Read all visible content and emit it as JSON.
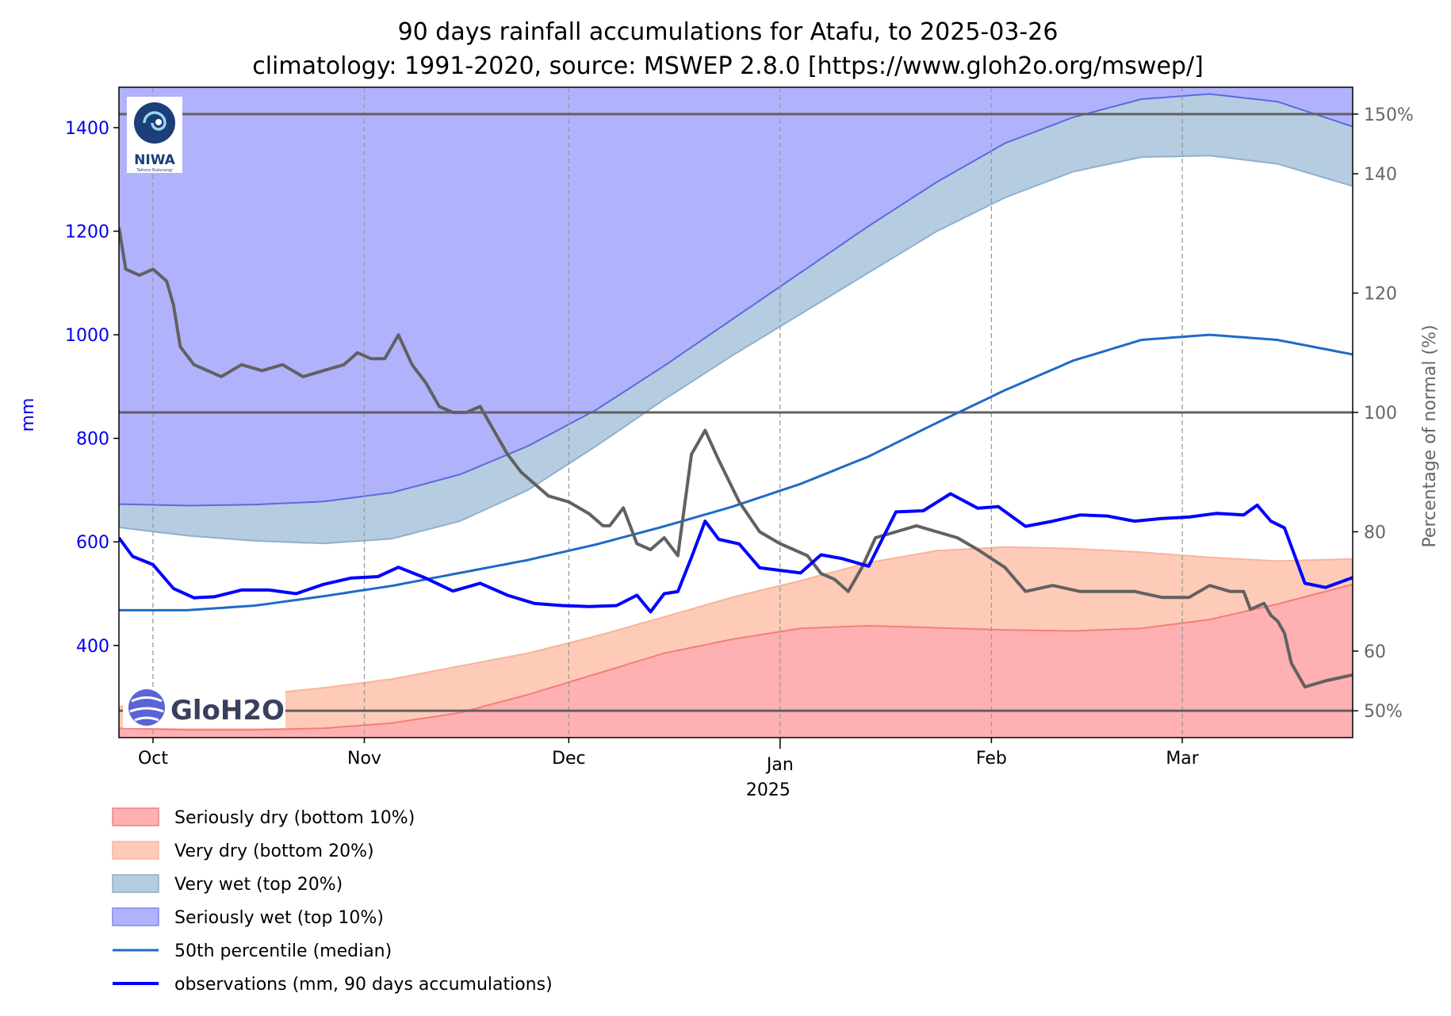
{
  "chart_data": {
    "type": "area",
    "title": "90 days rainfall accumulations for Atafu, to 2025-03-26",
    "subtitle": "climatology: 1991-2020, source: MSWEP 2.8.0 [https://www.gloh2o.org/mswep/]",
    "ylabel": "mm",
    "ylabel_right": "Percentage of normal (%)",
    "ylim": [
      222,
      1478
    ],
    "ylim_right": [
      45.5,
      154.5
    ],
    "xlim": [
      "2024-09-26",
      "2025-03-26"
    ],
    "x_ticks": [
      {
        "date": "2024-10-01",
        "label": "Oct"
      },
      {
        "date": "2024-11-01",
        "label": "Nov"
      },
      {
        "date": "2024-12-01",
        "label": "Dec"
      },
      {
        "date": "2025-01-01",
        "label": "Jan",
        "sublabel": "2025"
      },
      {
        "date": "2025-02-01",
        "label": "Feb"
      },
      {
        "date": "2025-03-01",
        "label": "Mar"
      }
    ],
    "y_ticks_left": [
      "400",
      "600",
      "800",
      "1000",
      "1200",
      "1400"
    ],
    "y_ticks_right": [
      {
        "value": 50,
        "label": "50%"
      },
      {
        "value": 60,
        "label": "60"
      },
      {
        "value": 80,
        "label": "80"
      },
      {
        "value": 100,
        "label": "100"
      },
      {
        "value": 120,
        "label": "120"
      },
      {
        "value": 140,
        "label": "140"
      },
      {
        "value": 150,
        "label": "150%"
      }
    ],
    "reference_lines_pct": [
      50,
      100,
      150
    ],
    "grid": "vertical dashed at month ticks",
    "legend_position": "below chart",
    "colors": {
      "seriously_dry": "#ffb0b3",
      "very_dry": "#fdcbb7",
      "very_wet": "#b6cce0",
      "seriously_wet": "#b1b2fc",
      "median": "#1f6ac6",
      "observations": "#0000ff",
      "percent": "#616161",
      "reference": "#616161"
    },
    "series": [
      {
        "key": "p10",
        "name": "Seriously dry (bottom 10%)",
        "x": [
          "2024-09-26",
          "2024-10-06",
          "2024-10-16",
          "2024-10-26",
          "2024-11-05",
          "2024-11-15",
          "2024-11-25",
          "2024-12-05",
          "2024-12-15",
          "2024-12-25",
          "2025-01-04",
          "2025-01-14",
          "2025-01-24",
          "2025-02-03",
          "2025-02-13",
          "2025-02-23",
          "2025-03-05",
          "2025-03-15",
          "2025-03-26"
        ],
        "values": [
          240,
          237,
          237,
          240,
          250,
          270,
          305,
          345,
          385,
          412,
          433,
          438,
          434,
          430,
          428,
          433,
          450,
          480,
          518
        ]
      },
      {
        "key": "p20",
        "name": "Very dry (bottom 20%)",
        "x": [
          "2024-09-26",
          "2024-10-06",
          "2024-10-16",
          "2024-10-26",
          "2024-11-05",
          "2024-11-15",
          "2024-11-25",
          "2024-12-05",
          "2024-12-15",
          "2024-12-25",
          "2025-01-04",
          "2025-01-14",
          "2025-01-24",
          "2025-02-03",
          "2025-02-13",
          "2025-02-23",
          "2025-03-05",
          "2025-03-15",
          "2025-03-26"
        ],
        "values": [
          282,
          295,
          305,
          318,
          335,
          360,
          385,
          418,
          455,
          493,
          525,
          560,
          583,
          590,
          587,
          580,
          570,
          563,
          567
        ]
      },
      {
        "key": "p80",
        "name": "Very wet (top 20%)",
        "x": [
          "2024-09-26",
          "2024-10-06",
          "2024-10-16",
          "2024-10-26",
          "2024-11-05",
          "2024-11-15",
          "2024-11-25",
          "2024-12-05",
          "2024-12-15",
          "2024-12-25",
          "2025-01-04",
          "2025-01-14",
          "2025-01-24",
          "2025-02-03",
          "2025-02-13",
          "2025-02-23",
          "2025-03-05",
          "2025-03-15",
          "2025-03-26"
        ],
        "values": [
          628,
          612,
          602,
          597,
          606,
          640,
          700,
          785,
          875,
          960,
          1040,
          1120,
          1200,
          1265,
          1315,
          1343,
          1346,
          1330,
          1287
        ]
      },
      {
        "key": "p90",
        "name": "Seriously wet (top 10%)",
        "x": [
          "2024-09-26",
          "2024-10-06",
          "2024-10-16",
          "2024-10-26",
          "2024-11-05",
          "2024-11-15",
          "2024-11-25",
          "2024-12-05",
          "2024-12-15",
          "2024-12-25",
          "2025-01-04",
          "2025-01-14",
          "2025-01-24",
          "2025-02-03",
          "2025-02-13",
          "2025-02-23",
          "2025-03-05",
          "2025-03-15",
          "2025-03-26"
        ],
        "values": [
          673,
          670,
          672,
          678,
          695,
          730,
          785,
          855,
          940,
          1030,
          1120,
          1210,
          1295,
          1370,
          1420,
          1455,
          1465,
          1450,
          1402
        ]
      },
      {
        "key": "median",
        "name": "50th percentile (median)",
        "x": [
          "2024-09-26",
          "2024-10-06",
          "2024-10-16",
          "2024-10-26",
          "2024-11-05",
          "2024-11-15",
          "2024-11-25",
          "2024-12-05",
          "2024-12-15",
          "2024-12-25",
          "2025-01-04",
          "2025-01-14",
          "2025-01-24",
          "2025-02-03",
          "2025-02-13",
          "2025-02-23",
          "2025-03-05",
          "2025-03-15",
          "2025-03-26"
        ],
        "values": [
          468,
          468,
          477,
          495,
          515,
          540,
          565,
          595,
          630,
          668,
          712,
          765,
          830,
          893,
          950,
          990,
          1000,
          990,
          962
        ]
      },
      {
        "key": "obs",
        "name": "observations (mm, 90 days accumulations)",
        "x": [
          "2024-09-26",
          "2024-09-28",
          "2024-10-01",
          "2024-10-04",
          "2024-10-07",
          "2024-10-10",
          "2024-10-14",
          "2024-10-18",
          "2024-10-22",
          "2024-10-26",
          "2024-10-30",
          "2024-11-03",
          "2024-11-06",
          "2024-11-10",
          "2024-11-14",
          "2024-11-18",
          "2024-11-22",
          "2024-11-26",
          "2024-11-30",
          "2024-12-04",
          "2024-12-08",
          "2024-12-11",
          "2024-12-13",
          "2024-12-15",
          "2024-12-17",
          "2024-12-19",
          "2024-12-21",
          "2024-12-23",
          "2024-12-26",
          "2024-12-29",
          "2025-01-01",
          "2025-01-04",
          "2025-01-07",
          "2025-01-10",
          "2025-01-14",
          "2025-01-18",
          "2025-01-22",
          "2025-01-26",
          "2025-01-30",
          "2025-02-02",
          "2025-02-06",
          "2025-02-10",
          "2025-02-14",
          "2025-02-18",
          "2025-02-22",
          "2025-02-26",
          "2025-03-02",
          "2025-03-06",
          "2025-03-10",
          "2025-03-12",
          "2025-03-14",
          "2025-03-16",
          "2025-03-19",
          "2025-03-22",
          "2025-03-26"
        ],
        "values": [
          608,
          572,
          556,
          510,
          492,
          494,
          507,
          507,
          500,
          518,
          530,
          533,
          551,
          530,
          505,
          520,
          497,
          481,
          477,
          475,
          477,
          497,
          465,
          500,
          504,
          570,
          640,
          605,
          596,
          550,
          545,
          540,
          575,
          568,
          553,
          658,
          660,
          693,
          665,
          668,
          630,
          640,
          652,
          650,
          640,
          645,
          648,
          655,
          652,
          671,
          640,
          627,
          520,
          512,
          531
        ]
      },
      {
        "key": "pct",
        "name": "Percentage of normal (%)",
        "x": [
          "2024-09-26",
          "2024-09-27",
          "2024-09-29",
          "2024-10-01",
          "2024-10-03",
          "2024-10-04",
          "2024-10-05",
          "2024-10-07",
          "2024-10-09",
          "2024-10-11",
          "2024-10-14",
          "2024-10-17",
          "2024-10-20",
          "2024-10-23",
          "2024-10-26",
          "2024-10-29",
          "2024-10-31",
          "2024-11-02",
          "2024-11-04",
          "2024-11-06",
          "2024-11-08",
          "2024-11-10",
          "2024-11-12",
          "2024-11-14",
          "2024-11-16",
          "2024-11-18",
          "2024-11-20",
          "2024-11-22",
          "2024-11-24",
          "2024-11-26",
          "2024-11-28",
          "2024-12-01",
          "2024-12-04",
          "2024-12-06",
          "2024-12-07",
          "2024-12-09",
          "2024-12-11",
          "2024-12-13",
          "2024-12-15",
          "2024-12-17",
          "2024-12-19",
          "2024-12-21",
          "2024-12-23",
          "2024-12-26",
          "2024-12-29",
          "2025-01-01",
          "2025-01-03",
          "2025-01-05",
          "2025-01-07",
          "2025-01-09",
          "2025-01-11",
          "2025-01-13",
          "2025-01-15",
          "2025-01-18",
          "2025-01-21",
          "2025-01-24",
          "2025-01-27",
          "2025-01-30",
          "2025-02-03",
          "2025-02-06",
          "2025-02-10",
          "2025-02-14",
          "2025-02-18",
          "2025-02-22",
          "2025-02-26",
          "2025-03-02",
          "2025-03-05",
          "2025-03-08",
          "2025-03-10",
          "2025-03-11",
          "2025-03-13",
          "2025-03-14",
          "2025-03-15",
          "2025-03-16",
          "2025-03-17",
          "2025-03-19",
          "2025-03-22",
          "2025-03-26"
        ],
        "values": [
          131,
          124,
          123,
          124,
          122,
          118,
          111,
          108,
          107,
          106,
          108,
          107,
          108,
          106,
          107,
          108,
          110,
          109,
          109,
          113,
          108,
          105,
          101,
          100,
          100,
          101,
          97,
          93,
          90,
          88,
          86,
          85,
          83,
          81,
          81,
          84,
          78,
          77,
          79,
          76,
          93,
          97,
          92,
          85,
          80,
          78,
          77,
          76,
          73,
          72,
          70,
          74,
          79,
          80,
          81,
          80,
          79,
          77,
          74,
          70,
          71,
          70,
          70,
          70,
          69,
          69,
          71,
          70,
          70,
          67,
          68,
          66,
          65,
          63,
          58,
          54,
          55,
          56
        ]
      }
    ]
  },
  "logos": {
    "niwa": {
      "text": "NIWA",
      "subtext": "Taihoro Nukurangi"
    },
    "gloh2o": {
      "text": "GloH2O"
    }
  }
}
